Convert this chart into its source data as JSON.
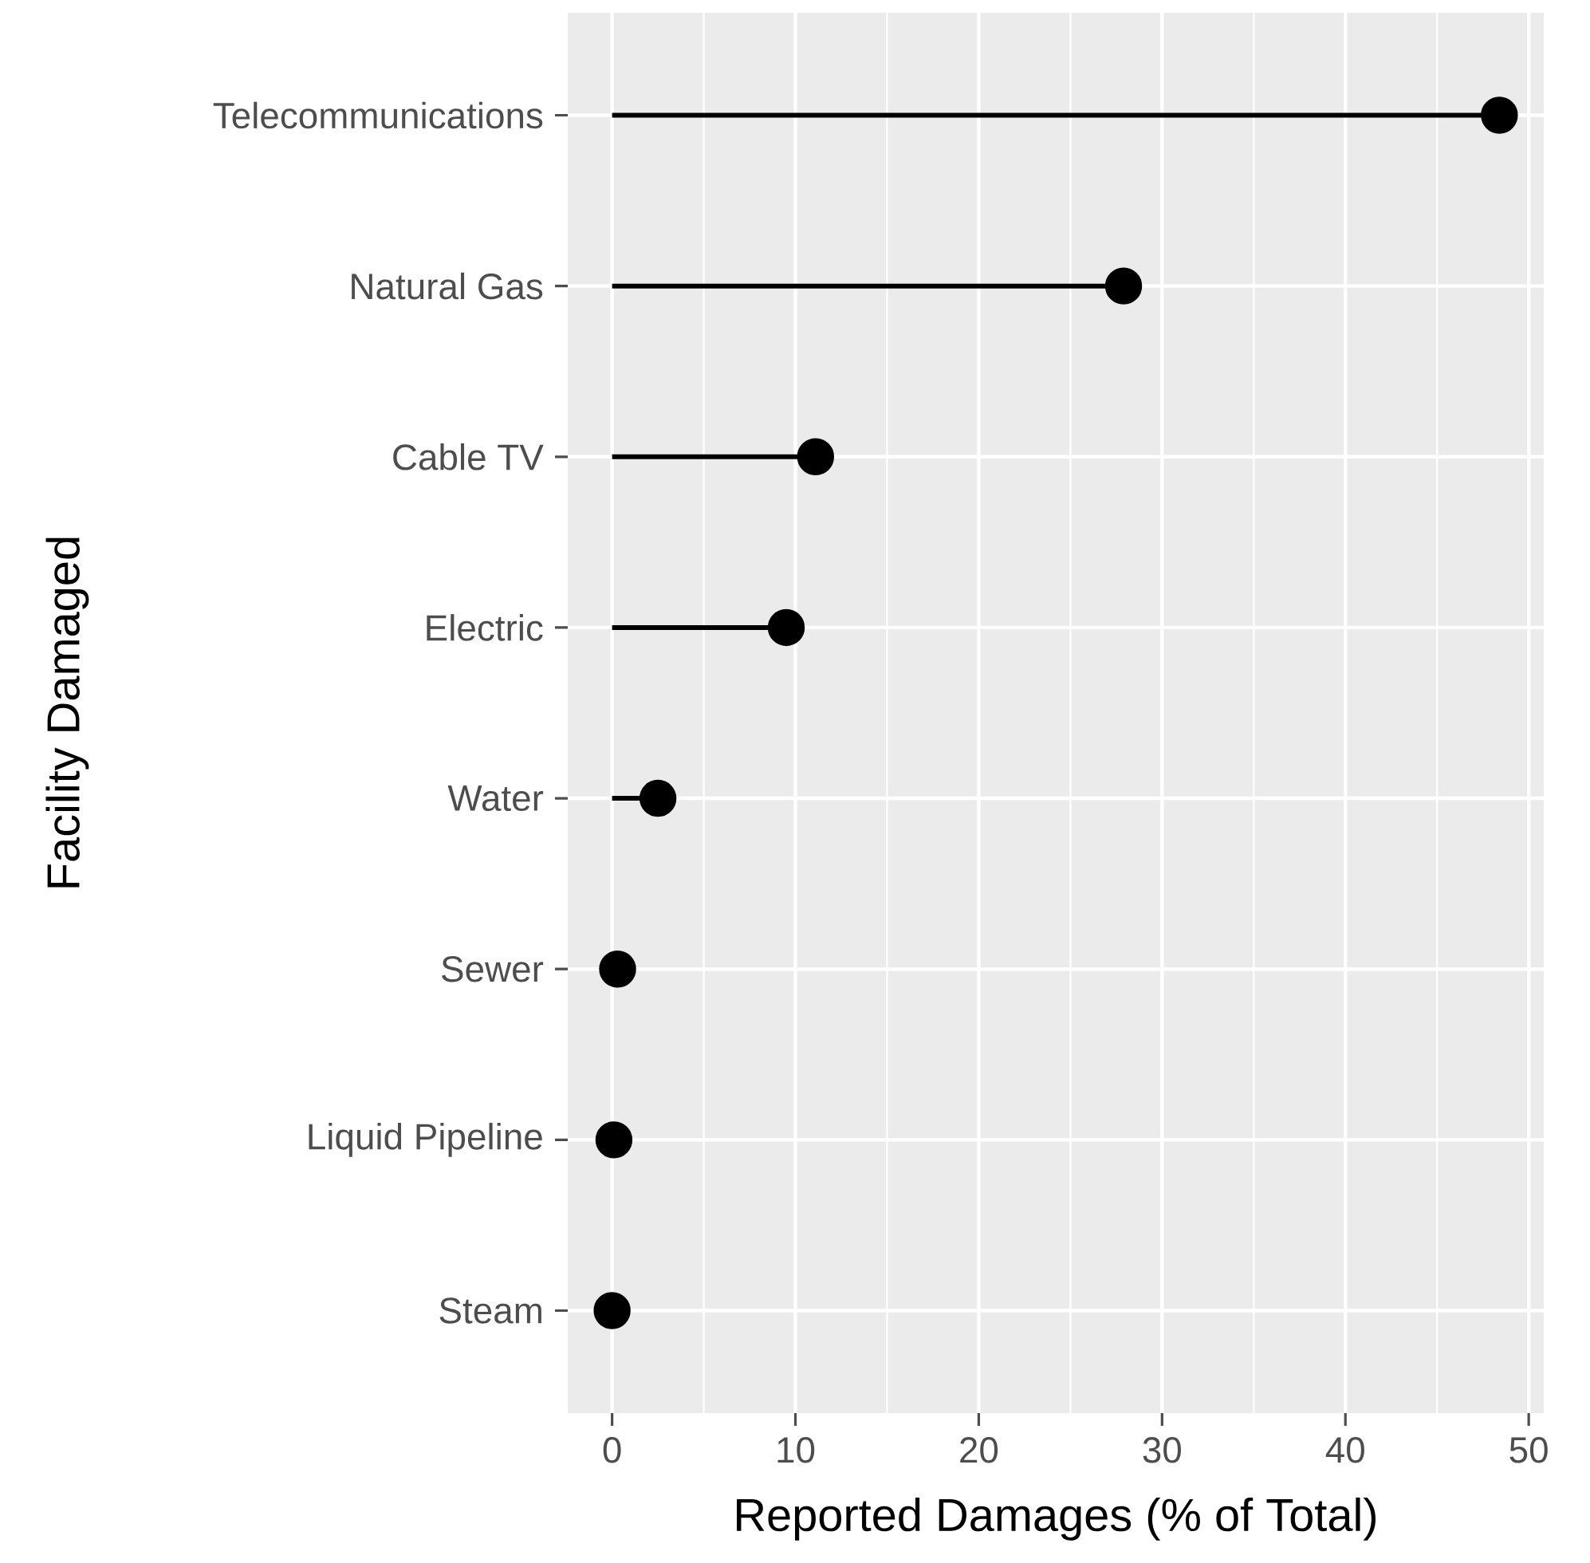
{
  "chart_data": {
    "type": "lollipop",
    "orientation": "horizontal",
    "xlabel": "Reported Damages (% of Total)",
    "ylabel": "Facility Damaged",
    "categories": [
      "Telecommunications",
      "Natural Gas",
      "Cable TV",
      "Electric",
      "Water",
      "Sewer",
      "Liquid Pipeline",
      "Steam"
    ],
    "values": [
      48.4,
      27.9,
      11.1,
      9.5,
      2.5,
      0.3,
      0.1,
      0.0
    ],
    "color": "#000000",
    "xlim": [
      -2.42,
      50.82
    ],
    "xticks": [
      0,
      10,
      20,
      30,
      40,
      50
    ],
    "grid": true
  }
}
